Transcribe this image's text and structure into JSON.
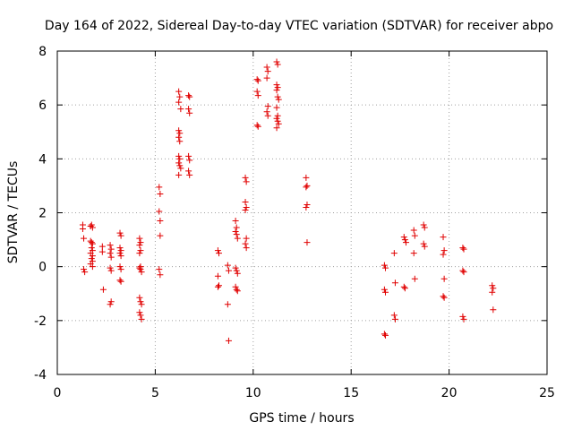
{
  "chart_data": {
    "type": "scatter",
    "title": "Day 164 of 2022, Sidereal Day-to-day VTEC variation (SDTVAR) for receiver abpo",
    "xlabel": "GPS time / hours",
    "ylabel": "SDTVAR / TECUs",
    "xlim": [
      0,
      25
    ],
    "ylim": [
      -4,
      8
    ],
    "xticks": [
      "0",
      "5",
      "10",
      "15",
      "20",
      "25"
    ],
    "yticks": [
      "-4",
      "-2",
      "0",
      "2",
      "4",
      "6",
      "8"
    ],
    "grid": true,
    "marker": "plus",
    "color": "#e00000",
    "series": [
      {
        "name": "SDTVAR",
        "points": [
          [
            1.3,
            1.55
          ],
          [
            1.3,
            1.4
          ],
          [
            1.35,
            1.05
          ],
          [
            1.35,
            -0.1
          ],
          [
            1.4,
            -0.2
          ],
          [
            1.7,
            1.5
          ],
          [
            1.75,
            1.55
          ],
          [
            1.8,
            1.45
          ],
          [
            1.7,
            0.95
          ],
          [
            1.75,
            0.9
          ],
          [
            1.8,
            0.85
          ],
          [
            1.75,
            0.7
          ],
          [
            1.8,
            0.6
          ],
          [
            1.7,
            0.5
          ],
          [
            1.8,
            0.4
          ],
          [
            1.75,
            0.3
          ],
          [
            1.8,
            0.2
          ],
          [
            1.7,
            0.1
          ],
          [
            1.8,
            0.0
          ],
          [
            2.3,
            0.75
          ],
          [
            2.3,
            0.55
          ],
          [
            2.35,
            -0.85
          ],
          [
            2.7,
            0.8
          ],
          [
            2.75,
            0.65
          ],
          [
            2.7,
            0.5
          ],
          [
            2.75,
            0.35
          ],
          [
            2.7,
            -0.05
          ],
          [
            2.75,
            -0.15
          ],
          [
            2.75,
            -1.3
          ],
          [
            2.7,
            -1.4
          ],
          [
            3.2,
            1.25
          ],
          [
            3.25,
            1.15
          ],
          [
            3.2,
            0.7
          ],
          [
            3.25,
            0.6
          ],
          [
            3.2,
            0.5
          ],
          [
            3.25,
            0.4
          ],
          [
            3.2,
            0.0
          ],
          [
            3.25,
            -0.1
          ],
          [
            3.2,
            -0.5
          ],
          [
            3.25,
            -0.55
          ],
          [
            4.2,
            1.05
          ],
          [
            4.25,
            0.9
          ],
          [
            4.2,
            0.8
          ],
          [
            4.25,
            0.6
          ],
          [
            4.2,
            0.5
          ],
          [
            4.25,
            0.0
          ],
          [
            4.2,
            -0.05
          ],
          [
            4.25,
            -0.1
          ],
          [
            4.3,
            -0.2
          ],
          [
            4.2,
            -1.15
          ],
          [
            4.25,
            -1.3
          ],
          [
            4.3,
            -1.4
          ],
          [
            4.2,
            -1.7
          ],
          [
            4.25,
            -1.8
          ],
          [
            4.3,
            -1.95
          ],
          [
            5.2,
            2.95
          ],
          [
            5.25,
            2.7
          ],
          [
            5.2,
            2.05
          ],
          [
            5.25,
            1.7
          ],
          [
            5.25,
            1.15
          ],
          [
            5.2,
            -0.1
          ],
          [
            5.25,
            -0.3
          ],
          [
            6.2,
            6.5
          ],
          [
            6.25,
            6.3
          ],
          [
            6.2,
            6.1
          ],
          [
            6.3,
            5.85
          ],
          [
            6.2,
            5.05
          ],
          [
            6.25,
            4.95
          ],
          [
            6.2,
            4.8
          ],
          [
            6.25,
            4.65
          ],
          [
            6.2,
            4.1
          ],
          [
            6.25,
            4.0
          ],
          [
            6.2,
            3.85
          ],
          [
            6.25,
            3.75
          ],
          [
            6.3,
            3.65
          ],
          [
            6.2,
            3.4
          ],
          [
            6.7,
            6.35
          ],
          [
            6.75,
            6.3
          ],
          [
            6.7,
            5.85
          ],
          [
            6.75,
            5.7
          ],
          [
            6.7,
            4.1
          ],
          [
            6.75,
            3.95
          ],
          [
            6.7,
            3.55
          ],
          [
            6.75,
            3.4
          ],
          [
            8.2,
            0.6
          ],
          [
            8.25,
            0.5
          ],
          [
            8.2,
            -0.35
          ],
          [
            8.25,
            -0.7
          ],
          [
            8.2,
            -0.75
          ],
          [
            8.7,
            0.05
          ],
          [
            8.75,
            -0.15
          ],
          [
            8.7,
            -1.4
          ],
          [
            8.75,
            -2.75
          ],
          [
            9.1,
            1.7
          ],
          [
            9.15,
            1.45
          ],
          [
            9.1,
            1.3
          ],
          [
            9.15,
            1.2
          ],
          [
            9.2,
            1.05
          ],
          [
            9.1,
            -0.05
          ],
          [
            9.15,
            -0.15
          ],
          [
            9.2,
            -0.25
          ],
          [
            9.1,
            -0.75
          ],
          [
            9.15,
            -0.85
          ],
          [
            9.2,
            -0.9
          ],
          [
            9.6,
            3.3
          ],
          [
            9.65,
            3.15
          ],
          [
            9.6,
            2.4
          ],
          [
            9.65,
            2.2
          ],
          [
            9.6,
            2.1
          ],
          [
            9.65,
            1.05
          ],
          [
            9.6,
            0.85
          ],
          [
            9.65,
            0.7
          ],
          [
            10.2,
            6.95
          ],
          [
            10.25,
            6.9
          ],
          [
            10.2,
            6.5
          ],
          [
            10.25,
            6.35
          ],
          [
            10.2,
            5.25
          ],
          [
            10.25,
            5.2
          ],
          [
            10.7,
            7.4
          ],
          [
            10.75,
            7.25
          ],
          [
            10.7,
            7.0
          ],
          [
            10.75,
            5.95
          ],
          [
            10.7,
            5.75
          ],
          [
            10.75,
            5.6
          ],
          [
            11.2,
            7.6
          ],
          [
            11.25,
            7.5
          ],
          [
            11.2,
            6.75
          ],
          [
            11.25,
            6.65
          ],
          [
            11.2,
            6.55
          ],
          [
            11.25,
            6.3
          ],
          [
            11.3,
            6.2
          ],
          [
            11.2,
            5.9
          ],
          [
            11.25,
            5.6
          ],
          [
            11.2,
            5.5
          ],
          [
            11.25,
            5.4
          ],
          [
            11.3,
            5.3
          ],
          [
            11.2,
            5.15
          ],
          [
            12.7,
            3.3
          ],
          [
            12.75,
            3.0
          ],
          [
            12.7,
            2.95
          ],
          [
            12.75,
            2.3
          ],
          [
            12.7,
            2.2
          ],
          [
            12.75,
            0.9
          ],
          [
            16.7,
            0.05
          ],
          [
            16.75,
            -0.05
          ],
          [
            16.7,
            -0.85
          ],
          [
            16.75,
            -0.95
          ],
          [
            16.7,
            -2.5
          ],
          [
            16.75,
            -2.55
          ],
          [
            17.2,
            0.5
          ],
          [
            17.25,
            -0.6
          ],
          [
            17.2,
            -1.8
          ],
          [
            17.25,
            -1.95
          ],
          [
            17.7,
            1.1
          ],
          [
            17.75,
            1.0
          ],
          [
            17.8,
            0.9
          ],
          [
            17.7,
            -0.75
          ],
          [
            17.75,
            -0.8
          ],
          [
            18.2,
            1.35
          ],
          [
            18.25,
            1.15
          ],
          [
            18.2,
            0.5
          ],
          [
            18.25,
            -0.45
          ],
          [
            18.7,
            1.55
          ],
          [
            18.75,
            1.45
          ],
          [
            18.7,
            0.85
          ],
          [
            18.75,
            0.75
          ],
          [
            19.7,
            1.1
          ],
          [
            19.75,
            0.6
          ],
          [
            19.7,
            0.45
          ],
          [
            19.75,
            -0.45
          ],
          [
            19.7,
            -1.1
          ],
          [
            19.75,
            -1.15
          ],
          [
            20.7,
            0.7
          ],
          [
            20.75,
            0.65
          ],
          [
            20.7,
            -0.15
          ],
          [
            20.75,
            -0.2
          ],
          [
            20.7,
            -1.85
          ],
          [
            20.75,
            -1.95
          ],
          [
            22.2,
            -0.7
          ],
          [
            22.25,
            -0.8
          ],
          [
            22.2,
            -0.95
          ],
          [
            22.25,
            -1.6
          ]
        ]
      }
    ]
  }
}
